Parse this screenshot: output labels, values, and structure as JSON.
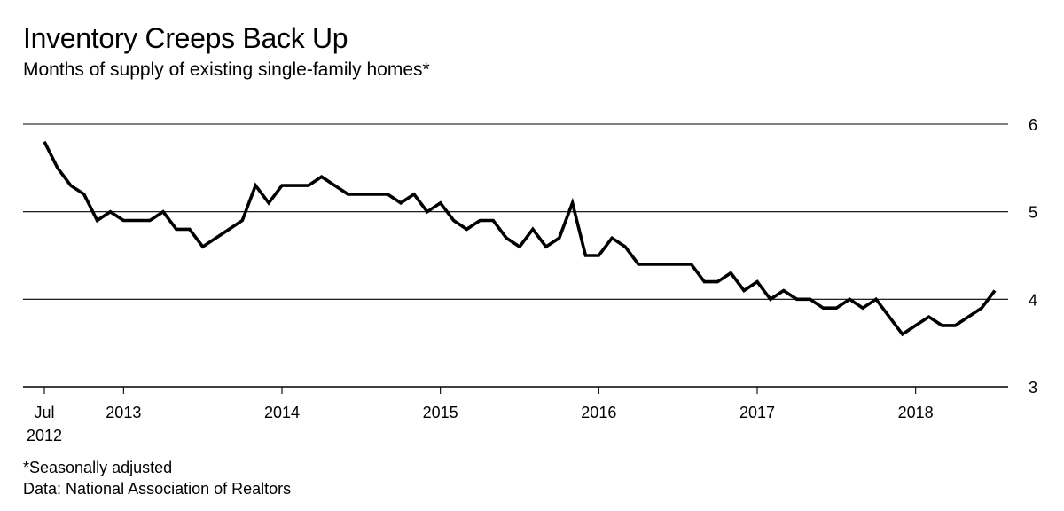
{
  "chart_data": {
    "type": "line",
    "title": "Inventory Creeps Back Up",
    "subtitle": "Months of supply of existing single-family homes*",
    "ylim": [
      3,
      6
    ],
    "yticks": [
      3,
      4,
      5,
      6
    ],
    "grid": true,
    "y_axis_side": "right",
    "x_start": "2012-07",
    "x_end": "2018-07",
    "xticks": [
      {
        "month": "2012-07",
        "label": "Jul",
        "sublabel": "2012"
      },
      {
        "month": "2013-01",
        "label": "2013"
      },
      {
        "month": "2014-01",
        "label": "2014"
      },
      {
        "month": "2015-01",
        "label": "2015"
      },
      {
        "month": "2016-01",
        "label": "2016"
      },
      {
        "month": "2017-01",
        "label": "2017"
      },
      {
        "month": "2018-01",
        "label": "2018"
      }
    ],
    "series": [
      {
        "color": "#000000",
        "values": [
          5.8,
          5.5,
          5.3,
          5.2,
          4.9,
          5.0,
          4.9,
          4.9,
          4.9,
          5.0,
          4.8,
          4.8,
          4.6,
          4.7,
          4.8,
          4.9,
          5.3,
          5.1,
          5.3,
          5.3,
          5.3,
          5.4,
          5.3,
          5.2,
          5.2,
          5.2,
          5.2,
          5.1,
          5.2,
          5.0,
          5.1,
          4.9,
          4.8,
          4.9,
          4.9,
          4.7,
          4.6,
          4.8,
          4.6,
          4.7,
          5.1,
          4.5,
          4.5,
          4.7,
          4.6,
          4.4,
          4.4,
          4.4,
          4.4,
          4.4,
          4.2,
          4.2,
          4.3,
          4.1,
          4.2,
          4.0,
          4.1,
          4.0,
          4.0,
          3.9,
          3.9,
          4.0,
          3.9,
          4.0,
          3.8,
          3.6,
          3.7,
          3.8,
          3.7,
          3.7,
          3.8,
          3.9,
          4.1
        ]
      }
    ]
  },
  "footnotes": {
    "note": "*Seasonally adjusted",
    "source": "Data: National Association of Realtors"
  }
}
